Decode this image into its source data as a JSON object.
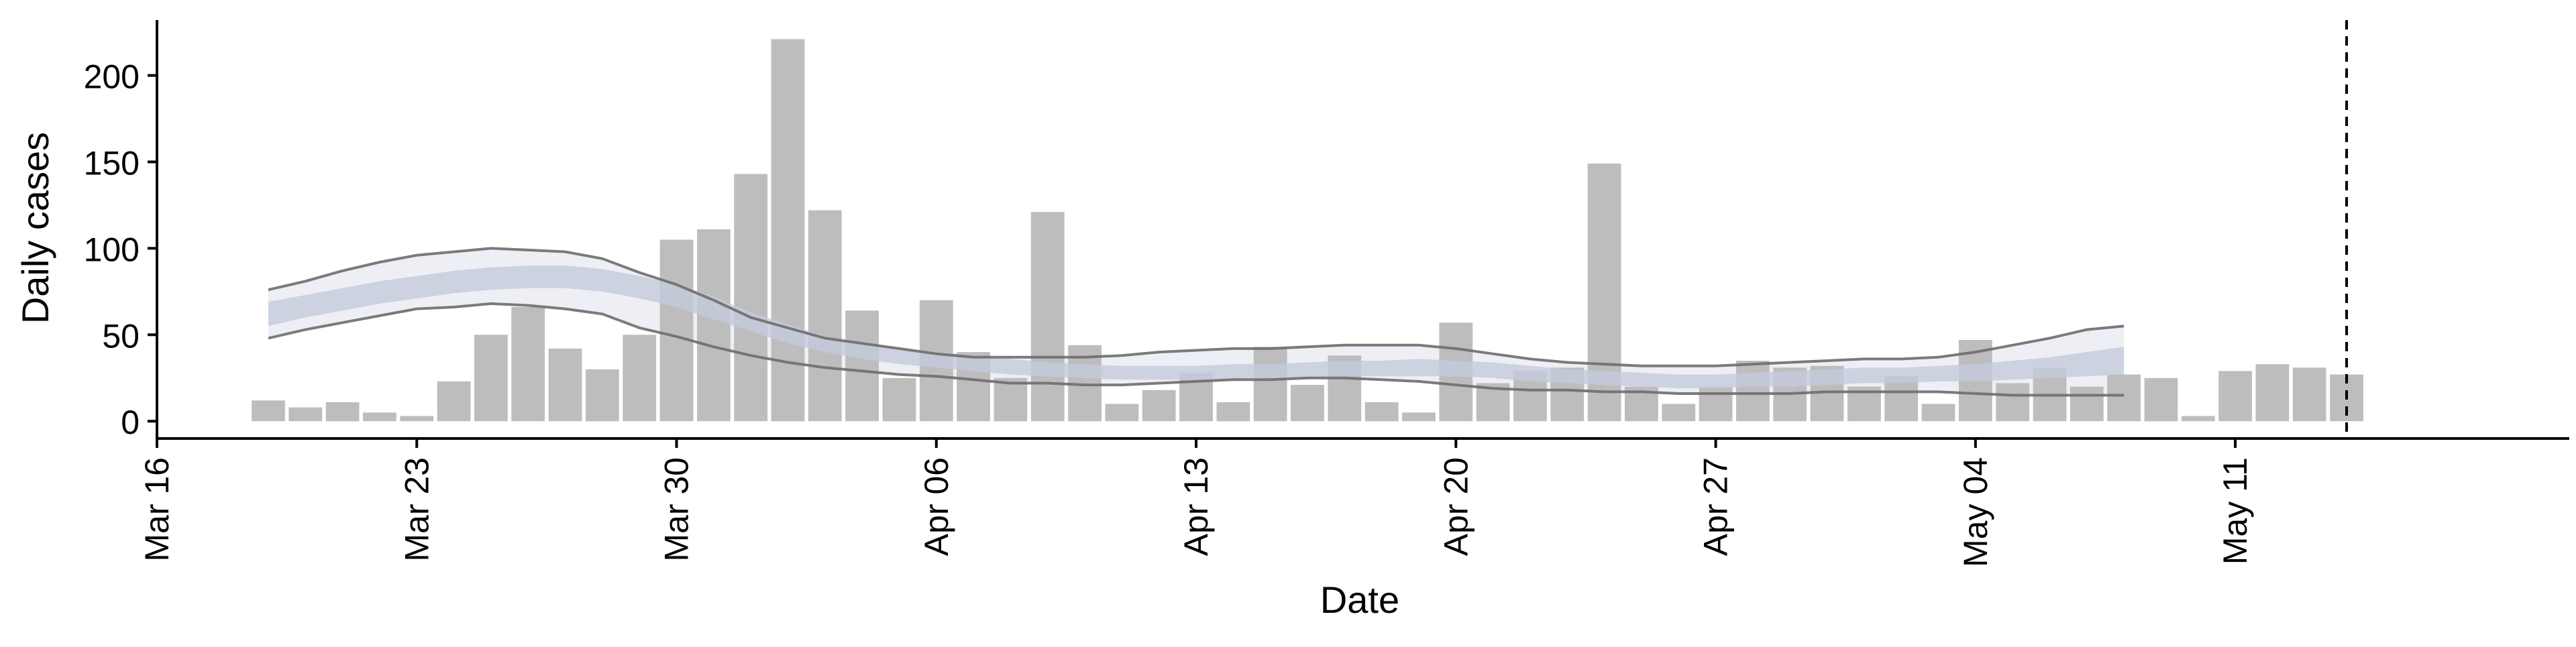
{
  "chart_data": {
    "type": "bar",
    "xlabel": "Date",
    "ylabel": "Daily cases",
    "ylim": [
      -10,
      232
    ],
    "y_ticks": [
      0,
      50,
      100,
      150,
      200
    ],
    "x_ticks": [
      "Mar 16",
      "Mar 23",
      "Mar 30",
      "Apr 06",
      "Apr 13",
      "Apr 20",
      "Apr 27",
      "May 04",
      "May 11"
    ],
    "x_tick_dates": [
      "2020-03-16",
      "2020-03-23",
      "2020-03-30",
      "2020-04-06",
      "2020-04-13",
      "2020-04-20",
      "2020-04-27",
      "2020-05-04",
      "2020-05-11"
    ],
    "xlim": [
      "2020-03-16",
      "2020-05-20"
    ],
    "grid": false,
    "reference_line_date": "2020-05-14",
    "bars": {
      "start_date": "2020-03-19",
      "values": [
        12,
        8,
        11,
        5,
        3,
        23,
        50,
        66,
        42,
        30,
        50,
        105,
        111,
        143,
        221,
        122,
        64,
        25,
        70,
        40,
        25,
        121,
        44,
        10,
        18,
        28,
        11,
        43,
        21,
        38,
        11,
        5,
        57,
        22,
        29,
        31,
        149,
        20,
        10,
        20,
        35,
        31,
        32,
        20,
        26,
        10,
        47,
        22,
        31,
        20,
        27,
        25,
        3,
        29,
        33,
        31,
        27
      ]
    },
    "estimate": {
      "start_date": "2020-03-19",
      "median": [
        62,
        66,
        70,
        74,
        77,
        80,
        82,
        83,
        83,
        81,
        77,
        72,
        65,
        57,
        50,
        44,
        40,
        37,
        35,
        33,
        31,
        29,
        28,
        27,
        27,
        27,
        28,
        28,
        29,
        30,
        30,
        31,
        30,
        29,
        27,
        25,
        24,
        23,
        22,
        22,
        23,
        24,
        25,
        26,
        26,
        27,
        28,
        29,
        31,
        33,
        35
      ],
      "inner_lower": [
        55,
        60,
        64,
        68,
        71,
        74,
        76,
        77,
        77,
        75,
        71,
        66,
        59,
        52,
        45,
        40,
        36,
        33,
        31,
        29,
        27,
        26,
        25,
        24,
        24,
        24,
        24,
        25,
        25,
        26,
        26,
        26,
        26,
        25,
        23,
        22,
        21,
        20,
        19,
        19,
        20,
        20,
        21,
        22,
        22,
        23,
        23,
        24,
        25,
        26,
        27
      ],
      "inner_upper": [
        69,
        73,
        77,
        81,
        84,
        87,
        89,
        90,
        90,
        88,
        84,
        79,
        72,
        63,
        56,
        49,
        45,
        42,
        40,
        38,
        36,
        34,
        33,
        32,
        32,
        32,
        33,
        33,
        34,
        35,
        35,
        36,
        35,
        34,
        32,
        30,
        29,
        28,
        27,
        27,
        28,
        29,
        30,
        31,
        31,
        32,
        33,
        35,
        37,
        40,
        43
      ],
      "outer_lower": [
        48,
        53,
        57,
        61,
        65,
        66,
        68,
        67,
        65,
        62,
        54,
        49,
        43,
        38,
        34,
        31,
        29,
        27,
        26,
        24,
        22,
        22,
        21,
        21,
        22,
        23,
        24,
        24,
        25,
        25,
        24,
        23,
        21,
        19,
        18,
        18,
        17,
        17,
        16,
        16,
        16,
        16,
        17,
        17,
        17,
        17,
        16,
        15,
        15,
        15,
        15
      ],
      "outer_upper": [
        76,
        81,
        87,
        92,
        96,
        98,
        100,
        99,
        98,
        94,
        86,
        79,
        70,
        60,
        54,
        48,
        45,
        42,
        39,
        37,
        37,
        37,
        37,
        38,
        40,
        41,
        42,
        42,
        43,
        44,
        44,
        44,
        42,
        39,
        36,
        34,
        33,
        32,
        32,
        32,
        33,
        34,
        35,
        36,
        36,
        37,
        40,
        44,
        48,
        53,
        55
      ]
    },
    "colors": {
      "bars": "#bdbdbd",
      "outer_band": "#e8eaf1",
      "inner_band": "#c4cbdc",
      "band_line": "#6d6d6d",
      "axis": "#000000"
    }
  }
}
